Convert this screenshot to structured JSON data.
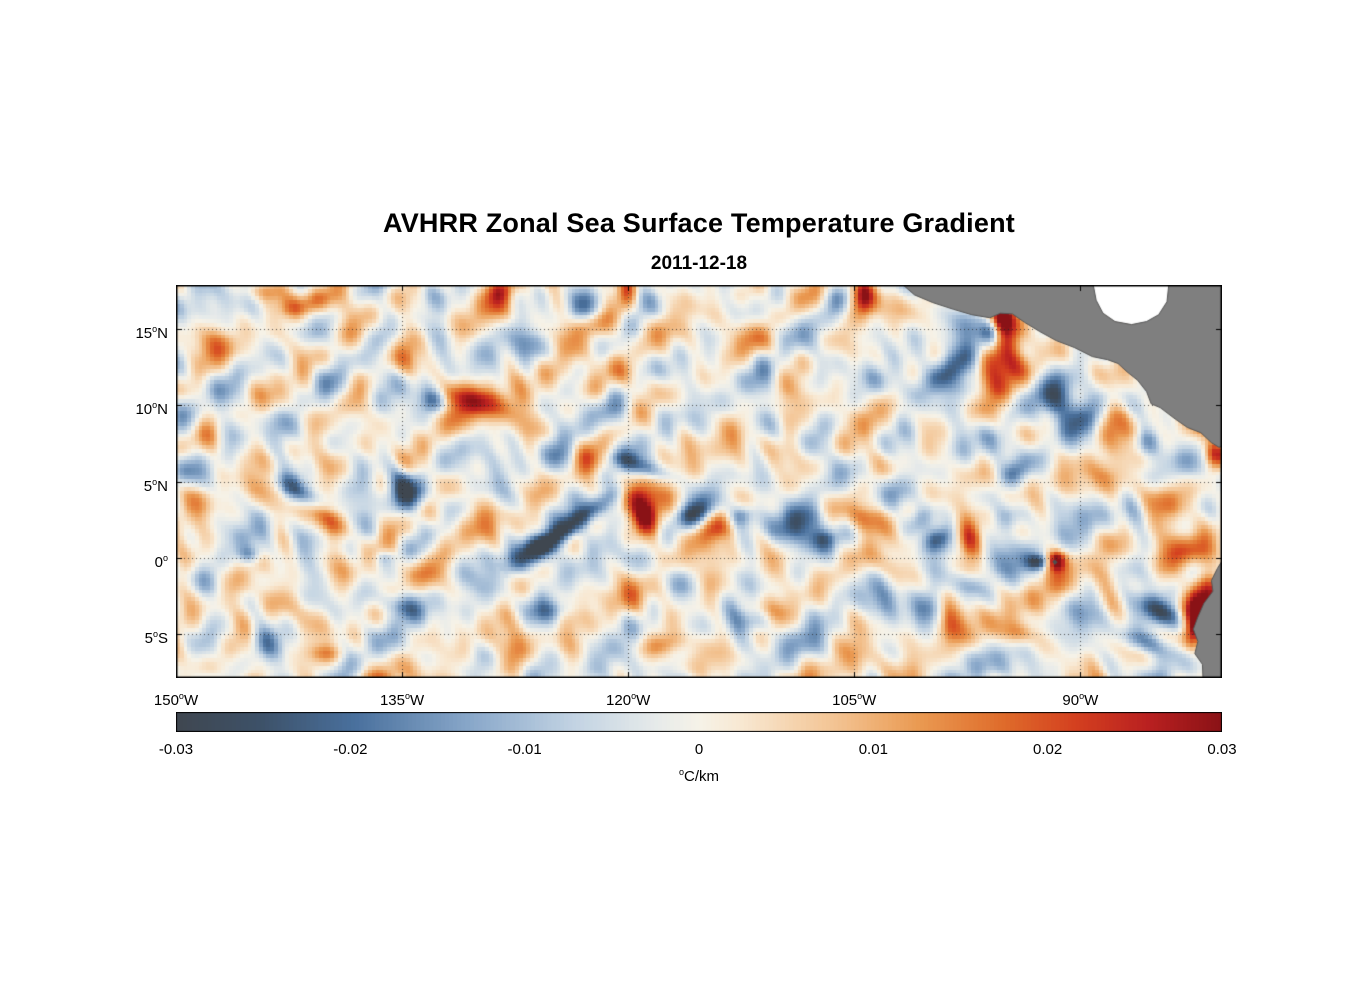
{
  "chart_data": {
    "type": "heatmap",
    "title": "AVHRR Zonal Sea Surface Temperature Gradient",
    "subtitle": "2011-12-18",
    "lon_range": [
      -150,
      -80.6
    ],
    "lat_range": [
      -7.9,
      17.9
    ],
    "value_range": [
      -0.03,
      0.03
    ],
    "x_ticks": [
      {
        "lon": -150,
        "num": "150",
        "suffix": "W"
      },
      {
        "lon": -135,
        "num": "135",
        "suffix": "W"
      },
      {
        "lon": -120,
        "num": "120",
        "suffix": "W"
      },
      {
        "lon": -105,
        "num": "105",
        "suffix": "W"
      },
      {
        "lon": -90,
        "num": "90",
        "suffix": "W"
      }
    ],
    "y_ticks": [
      {
        "lat": 15,
        "num": "15",
        "suffix": "N"
      },
      {
        "lat": 10,
        "num": "10",
        "suffix": "N"
      },
      {
        "lat": 5,
        "num": "5",
        "suffix": "N"
      },
      {
        "lat": 0,
        "num": "0",
        "suffix": ""
      },
      {
        "lat": -5,
        "num": "5",
        "suffix": "S"
      }
    ],
    "grid": {
      "style": "dotted",
      "lon_lines": [
        -135,
        -120,
        -105,
        -90
      ],
      "lat_lines": [
        15,
        10,
        5,
        0,
        -5
      ]
    },
    "colorbar": {
      "ticks": [
        {
          "v": -0.03,
          "label": "-0.03"
        },
        {
          "v": -0.02,
          "label": "-0.02"
        },
        {
          "v": -0.01,
          "label": "-0.01"
        },
        {
          "v": 0,
          "label": "0"
        },
        {
          "v": 0.01,
          "label": "0.01"
        },
        {
          "v": 0.02,
          "label": "0.02"
        },
        {
          "v": 0.03,
          "label": "0.03"
        }
      ],
      "unit_sup": "o",
      "unit_text": "C/km"
    },
    "colormap": [
      [
        0.0,
        "#3f4750"
      ],
      [
        0.08,
        "#3d5168"
      ],
      [
        0.17,
        "#49709d"
      ],
      [
        0.28,
        "#88a7c9"
      ],
      [
        0.38,
        "#c2d3e3"
      ],
      [
        0.46,
        "#e7ebea"
      ],
      [
        0.5,
        "#f6f2e8"
      ],
      [
        0.54,
        "#f8e8d2"
      ],
      [
        0.63,
        "#f3c493"
      ],
      [
        0.71,
        "#ea9a52"
      ],
      [
        0.79,
        "#df6c2b"
      ],
      [
        0.86,
        "#d4401f"
      ],
      [
        0.93,
        "#b92020"
      ],
      [
        1.0,
        "#8a1216"
      ]
    ],
    "noise": {
      "seed": 11,
      "octaves": 26,
      "amplitude": 0.0062,
      "min_wavelength_deg": 1.5,
      "max_wavelength_deg": 8,
      "quantize_deg": 0.25
    },
    "features_format": [
      "lon",
      "lat",
      "amplitude_C_per_km",
      "sigma_major_deg",
      "sigma_minor_deg",
      "rotation_deg"
    ],
    "features": [
      [
        -123.4,
        2.4,
        -0.03,
        2.6,
        0.5,
        35
      ],
      [
        -125.9,
        0.6,
        -0.026,
        1.2,
        0.65,
        25
      ],
      [
        -119.0,
        2.8,
        0.03,
        0.85,
        1.25,
        15
      ],
      [
        -119.2,
        6.0,
        -0.013,
        1.5,
        0.38,
        -18
      ],
      [
        -115.6,
        2.9,
        -0.018,
        0.85,
        0.5,
        30
      ],
      [
        -114.3,
        2.0,
        0.02,
        1.0,
        0.6,
        25
      ],
      [
        -112.6,
        2.7,
        -0.016,
        0.8,
        0.5,
        20
      ],
      [
        -108.3,
        2.3,
        -0.024,
        1.25,
        0.9,
        0
      ],
      [
        -107.0,
        1.2,
        -0.016,
        0.7,
        0.5,
        0
      ],
      [
        -104.1,
        2.6,
        0.022,
        0.9,
        0.7,
        -10
      ],
      [
        -100.8,
        2.4,
        -0.022,
        1.0,
        0.6,
        40
      ],
      [
        -99.5,
        1.2,
        -0.016,
        0.8,
        0.5,
        30
      ],
      [
        -97.4,
        1.5,
        0.02,
        0.6,
        1.1,
        10
      ],
      [
        -94.8,
        2.6,
        -0.02,
        1.0,
        0.7,
        30
      ],
      [
        -94.3,
        5.6,
        -0.014,
        0.8,
        0.55,
        40
      ],
      [
        -92.8,
        -0.3,
        -0.018,
        0.55,
        0.3,
        0
      ],
      [
        -91.6,
        -0.2,
        0.028,
        0.45,
        0.45,
        0
      ],
      [
        -98.6,
        12.4,
        -0.028,
        2.2,
        0.7,
        35
      ],
      [
        -94.9,
        13.4,
        0.032,
        0.95,
        1.6,
        10
      ],
      [
        -95.9,
        14.9,
        -0.024,
        0.5,
        0.65,
        0
      ],
      [
        -95.3,
        15.8,
        0.028,
        0.6,
        0.7,
        0
      ],
      [
        -91.4,
        10.6,
        -0.024,
        1.0,
        1.3,
        -20
      ],
      [
        -90.2,
        8.9,
        -0.018,
        0.75,
        0.8,
        0
      ],
      [
        -88.0,
        9.2,
        0.026,
        0.7,
        1.1,
        -15
      ],
      [
        -85.8,
        7.5,
        -0.02,
        0.9,
        0.7,
        20
      ],
      [
        -81.6,
        10.4,
        0.026,
        0.6,
        1.2,
        0
      ],
      [
        -81.0,
        9.3,
        -0.018,
        0.5,
        0.6,
        0
      ],
      [
        -81.0,
        6.8,
        0.02,
        0.5,
        0.6,
        0
      ],
      [
        -84.6,
        -3.6,
        -0.026,
        1.6,
        0.55,
        -30
      ],
      [
        -85.6,
        -5.6,
        -0.018,
        1.2,
        0.5,
        -20
      ],
      [
        -82.0,
        -2.6,
        0.03,
        0.7,
        1.6,
        -15
      ],
      [
        -82.4,
        -4.8,
        0.024,
        0.5,
        0.9,
        -20
      ],
      [
        -82.8,
        0.3,
        0.02,
        1.2,
        0.8,
        0
      ],
      [
        -85.5,
        4.0,
        0.014,
        1.3,
        0.9,
        0
      ],
      [
        -98.8,
        -3.8,
        0.02,
        0.5,
        1.1,
        10
      ],
      [
        -100.5,
        -3.5,
        -0.016,
        0.9,
        0.9,
        20
      ],
      [
        -97.3,
        -1.8,
        -0.013,
        0.8,
        0.5,
        -30
      ],
      [
        -141.6,
        4.1,
        -0.02,
        1.6,
        0.5,
        -33
      ],
      [
        -140.1,
        2.8,
        0.019,
        1.5,
        0.5,
        -33
      ],
      [
        -135.3,
        5.6,
        -0.019,
        0.5,
        1.0,
        30
      ],
      [
        -134.6,
        3.9,
        -0.02,
        0.7,
        1.1,
        45
      ],
      [
        -133.6,
        3.1,
        0.017,
        0.6,
        0.9,
        35
      ],
      [
        -129.6,
        10.2,
        0.021,
        1.4,
        0.8,
        -10
      ],
      [
        -131.9,
        10.7,
        0.013,
        0.7,
        0.6,
        0
      ],
      [
        -132.7,
        10.3,
        -0.014,
        0.7,
        0.55,
        0
      ],
      [
        -122.6,
        15.3,
        0.014,
        1.3,
        0.6,
        15
      ],
      [
        -120.1,
        17.4,
        0.022,
        0.5,
        0.9,
        0
      ],
      [
        -104.4,
        17.2,
        0.03,
        0.55,
        1.0,
        0
      ],
      [
        -106.1,
        16.9,
        -0.014,
        0.6,
        0.8,
        0
      ],
      [
        -128.6,
        17.6,
        0.02,
        0.8,
        0.7,
        0
      ],
      [
        -127.3,
        17.5,
        -0.016,
        0.55,
        0.7,
        0
      ],
      [
        -141.4,
        16.6,
        0.013,
        1.2,
        0.5,
        15
      ],
      [
        -144.1,
        17.5,
        0.012,
        1.0,
        0.5,
        0
      ],
      [
        -149.3,
        6.3,
        -0.013,
        0.7,
        0.9,
        0
      ],
      [
        -149.5,
        4.6,
        0.013,
        0.6,
        0.8,
        0
      ],
      [
        -145.1,
        0.2,
        -0.014,
        0.55,
        0.4,
        0
      ],
      [
        -135.2,
        -3.1,
        -0.013,
        1.0,
        0.5,
        -20
      ],
      [
        -139.9,
        -6.3,
        0.013,
        0.9,
        0.45,
        0
      ],
      [
        -124.6,
        -3.4,
        -0.012,
        0.9,
        0.5,
        0
      ],
      [
        -136.1,
        0.0,
        -0.012,
        0.5,
        0.4,
        0
      ],
      [
        -117.2,
        -5.6,
        0.012,
        1.0,
        0.5,
        10
      ],
      [
        -111.5,
        -4.2,
        -0.011,
        0.9,
        0.5,
        0
      ],
      [
        -94.0,
        -5.0,
        0.012,
        0.8,
        0.5,
        0
      ]
    ],
    "land": {
      "fill": "#7f7f7f",
      "edge": "#565656",
      "nodata_fill": "#ffffff",
      "regions": [
        {
          "name": "caribbean-nodata",
          "fill": "#ffffff",
          "edge": null,
          "points": [
            [
              -89.2,
              18.2
            ],
            [
              -88.95,
              16.9
            ],
            [
              -88.5,
              16.05
            ],
            [
              -87.7,
              15.5
            ],
            [
              -86.6,
              15.3
            ],
            [
              -85.6,
              15.5
            ],
            [
              -84.8,
              15.95
            ],
            [
              -84.25,
              16.8
            ],
            [
              -84.1,
              18.2
            ]
          ]
        },
        {
          "name": "central-america",
          "fill": "#7f7f7f",
          "edge": "#565656",
          "points": [
            [
              -102.1,
              18.2
            ],
            [
              -101.0,
              17.25
            ],
            [
              -99.8,
              16.75
            ],
            [
              -98.4,
              16.3
            ],
            [
              -97.2,
              15.95
            ],
            [
              -96.0,
              15.75
            ],
            [
              -95.3,
              16.05
            ],
            [
              -94.5,
              16.0
            ],
            [
              -93.7,
              15.45
            ],
            [
              -92.7,
              14.85
            ],
            [
              -91.6,
              14.25
            ],
            [
              -90.4,
              13.8
            ],
            [
              -89.2,
              13.2
            ],
            [
              -88.2,
              13.0
            ],
            [
              -87.5,
              12.75
            ],
            [
              -86.9,
              12.2
            ],
            [
              -86.2,
              11.65
            ],
            [
              -85.6,
              10.9
            ],
            [
              -85.3,
              10.1
            ],
            [
              -84.7,
              9.85
            ],
            [
              -83.7,
              9.1
            ],
            [
              -82.9,
              8.55
            ],
            [
              -82.0,
              8.2
            ],
            [
              -81.3,
              7.55
            ],
            [
              -80.8,
              7.25
            ],
            [
              -80.0,
              7.5
            ],
            [
              -80.0,
              18.2
            ],
            [
              -84.1,
              18.2
            ],
            [
              -84.25,
              16.8
            ],
            [
              -84.8,
              15.95
            ],
            [
              -85.6,
              15.5
            ],
            [
              -86.6,
              15.3
            ],
            [
              -87.7,
              15.5
            ],
            [
              -88.5,
              16.05
            ],
            [
              -88.95,
              16.9
            ],
            [
              -89.2,
              18.2
            ]
          ]
        },
        {
          "name": "south-america",
          "fill": "#7f7f7f",
          "edge": "#565656",
          "points": [
            [
              -80.4,
              0.1
            ],
            [
              -80.9,
              -0.7
            ],
            [
              -81.3,
              -1.5
            ],
            [
              -81.2,
              -2.2
            ],
            [
              -81.8,
              -3.0
            ],
            [
              -82.2,
              -3.9
            ],
            [
              -82.5,
              -4.7
            ],
            [
              -82.2,
              -5.5
            ],
            [
              -82.4,
              -6.3
            ],
            [
              -81.9,
              -7.0
            ],
            [
              -81.85,
              -8.2
            ],
            [
              -80.4,
              -8.2
            ]
          ]
        },
        {
          "name": "galapagos-island",
          "fill": "#4f4f4f",
          "edge": null,
          "points": [
            [
              -91.85,
              -0.25
            ],
            [
              -91.7,
              -0.12
            ],
            [
              -91.5,
              -0.3
            ],
            [
              -91.7,
              -0.48
            ]
          ]
        }
      ]
    }
  }
}
